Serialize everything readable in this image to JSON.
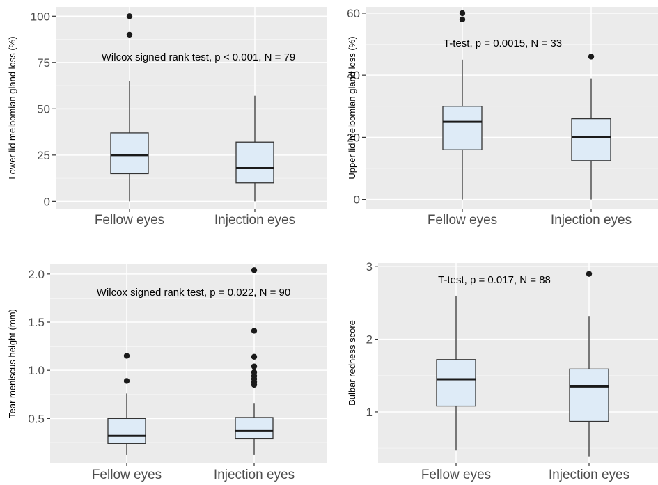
{
  "chart_data": [
    {
      "type": "boxplot",
      "ylabel": "Lower lid meibomian gland loss (%)",
      "annotation": "Wilcox signed rank test, p <  0.001, N = 79",
      "categories": [
        "Fellow eyes",
        "Injection eyes"
      ],
      "ylim": [
        -4,
        105
      ],
      "yticks": [
        0,
        25,
        50,
        75,
        100
      ],
      "boxes": [
        {
          "min": 0,
          "q1": 15,
          "median": 25,
          "q3": 37,
          "max": 65,
          "outliers": [
            90,
            100
          ]
        },
        {
          "min": 0,
          "q1": 10,
          "median": 18,
          "q3": 32,
          "max": 57,
          "outliers": []
        }
      ],
      "colors": {
        "box_fill": "#deebf7",
        "panel": "#ebebeb",
        "grid": "#ffffff"
      }
    },
    {
      "type": "boxplot",
      "ylabel": "Upper lid meibomian gland loss (%)",
      "annotation": "T-test, p = 0.0015, N = 33",
      "categories": [
        "Fellow eyes",
        "Injection eyes"
      ],
      "ylim": [
        -3,
        62
      ],
      "yticks": [
        0,
        20,
        40,
        60
      ],
      "boxes": [
        {
          "min": 0,
          "q1": 16,
          "median": 25,
          "q3": 30,
          "max": 45,
          "outliers": [
            58,
            60
          ]
        },
        {
          "min": 0,
          "q1": 12.5,
          "median": 20,
          "q3": 26,
          "max": 39,
          "outliers": [
            46
          ]
        }
      ],
      "colors": {
        "box_fill": "#deebf7",
        "panel": "#ebebeb",
        "grid": "#ffffff"
      }
    },
    {
      "type": "boxplot",
      "ylabel": "Tear meniscus height (mm)",
      "annotation": "Wilcox signed rank test, p = 0.022, N = 90",
      "categories": [
        "Fellow eyes",
        "Injection eyes"
      ],
      "ylim": [
        0.04,
        2.1
      ],
      "yticks": [
        0.5,
        1.0,
        1.5,
        2.0
      ],
      "ytick_labels": [
        "0.5",
        "1.0",
        "1.5",
        "2.0"
      ],
      "boxes": [
        {
          "min": 0.12,
          "q1": 0.24,
          "median": 0.32,
          "q3": 0.5,
          "max": 0.76,
          "outliers": [
            0.89,
            1.15
          ]
        },
        {
          "min": 0.12,
          "q1": 0.29,
          "median": 0.37,
          "q3": 0.51,
          "max": 0.66,
          "outliers": [
            0.85,
            0.88,
            0.91,
            0.94,
            0.98,
            1.04,
            1.14,
            1.41,
            2.04
          ]
        }
      ],
      "colors": {
        "box_fill": "#deebf7",
        "panel": "#ebebeb",
        "grid": "#ffffff"
      }
    },
    {
      "type": "boxplot",
      "ylabel": "Bulbar redness score",
      "annotation": "T-test, p = 0.017, N = 88",
      "categories": [
        "Fellow eyes",
        "Injection eyes"
      ],
      "ylim": [
        0.3,
        3.05
      ],
      "yticks": [
        1,
        2,
        3
      ],
      "boxes": [
        {
          "min": 0.47,
          "q1": 1.08,
          "median": 1.45,
          "q3": 1.72,
          "max": 2.6,
          "outliers": []
        },
        {
          "min": 0.38,
          "q1": 0.87,
          "median": 1.35,
          "q3": 1.59,
          "max": 2.32,
          "outliers": [
            2.9
          ]
        }
      ],
      "colors": {
        "box_fill": "#deebf7",
        "panel": "#ebebeb",
        "grid": "#ffffff"
      }
    }
  ]
}
